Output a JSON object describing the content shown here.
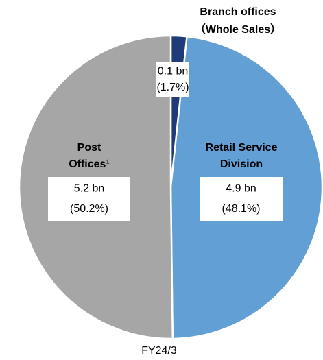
{
  "chart_data": {
    "type": "pie",
    "categories": [
      [
        "Branch offices",
        "（Whole Sales）"
      ],
      [
        "Retail Service",
        "Division"
      ],
      [
        "Post",
        "Offices¹"
      ]
    ],
    "values": [
      1.7,
      48.1,
      50.2
    ],
    "value_labels": [
      "(1.7%)",
      "(48.1%)",
      "(50.2%)"
    ],
    "amount_labels": [
      "0.1 bn",
      "4.9 bn",
      "5.2 bn"
    ],
    "colors": [
      "#1f3b78",
      "#629fd4",
      "#a6a6a6"
    ],
    "xlabel": "FY24/3"
  }
}
